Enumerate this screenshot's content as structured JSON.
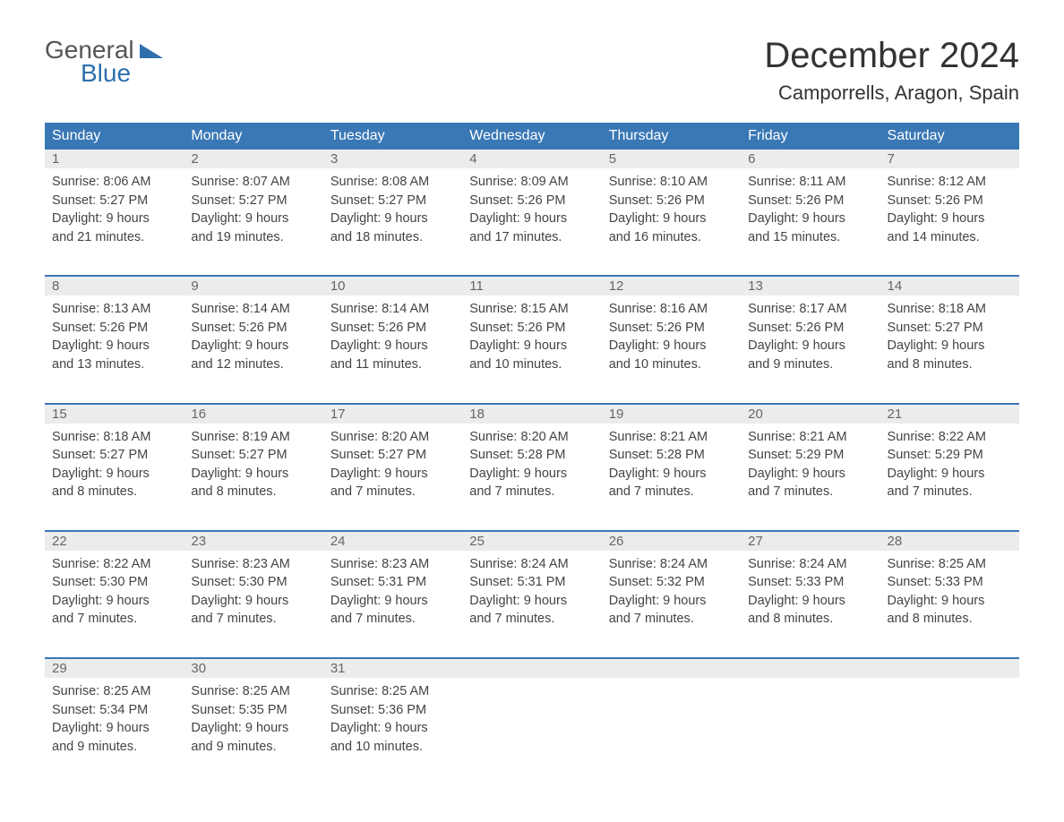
{
  "logo": {
    "general": "General",
    "blue": "Blue"
  },
  "title": "December 2024",
  "location": "Camporrells, Aragon, Spain",
  "colors": {
    "header_bg": "#3a78b5",
    "header_fg": "#ffffff",
    "daynum_bg": "#ececec",
    "daynum_fg": "#666666",
    "border": "#3a78b5",
    "logo_general": "#555555",
    "logo_blue": "#2f6fae",
    "text": "#444444",
    "background": "#ffffff"
  },
  "weekdays": [
    "Sunday",
    "Monday",
    "Tuesday",
    "Wednesday",
    "Thursday",
    "Friday",
    "Saturday"
  ],
  "weeks": [
    [
      {
        "n": "1",
        "sr": "Sunrise: 8:06 AM",
        "ss": "Sunset: 5:27 PM",
        "d1": "Daylight: 9 hours",
        "d2": "and 21 minutes."
      },
      {
        "n": "2",
        "sr": "Sunrise: 8:07 AM",
        "ss": "Sunset: 5:27 PM",
        "d1": "Daylight: 9 hours",
        "d2": "and 19 minutes."
      },
      {
        "n": "3",
        "sr": "Sunrise: 8:08 AM",
        "ss": "Sunset: 5:27 PM",
        "d1": "Daylight: 9 hours",
        "d2": "and 18 minutes."
      },
      {
        "n": "4",
        "sr": "Sunrise: 8:09 AM",
        "ss": "Sunset: 5:26 PM",
        "d1": "Daylight: 9 hours",
        "d2": "and 17 minutes."
      },
      {
        "n": "5",
        "sr": "Sunrise: 8:10 AM",
        "ss": "Sunset: 5:26 PM",
        "d1": "Daylight: 9 hours",
        "d2": "and 16 minutes."
      },
      {
        "n": "6",
        "sr": "Sunrise: 8:11 AM",
        "ss": "Sunset: 5:26 PM",
        "d1": "Daylight: 9 hours",
        "d2": "and 15 minutes."
      },
      {
        "n": "7",
        "sr": "Sunrise: 8:12 AM",
        "ss": "Sunset: 5:26 PM",
        "d1": "Daylight: 9 hours",
        "d2": "and 14 minutes."
      }
    ],
    [
      {
        "n": "8",
        "sr": "Sunrise: 8:13 AM",
        "ss": "Sunset: 5:26 PM",
        "d1": "Daylight: 9 hours",
        "d2": "and 13 minutes."
      },
      {
        "n": "9",
        "sr": "Sunrise: 8:14 AM",
        "ss": "Sunset: 5:26 PM",
        "d1": "Daylight: 9 hours",
        "d2": "and 12 minutes."
      },
      {
        "n": "10",
        "sr": "Sunrise: 8:14 AM",
        "ss": "Sunset: 5:26 PM",
        "d1": "Daylight: 9 hours",
        "d2": "and 11 minutes."
      },
      {
        "n": "11",
        "sr": "Sunrise: 8:15 AM",
        "ss": "Sunset: 5:26 PM",
        "d1": "Daylight: 9 hours",
        "d2": "and 10 minutes."
      },
      {
        "n": "12",
        "sr": "Sunrise: 8:16 AM",
        "ss": "Sunset: 5:26 PM",
        "d1": "Daylight: 9 hours",
        "d2": "and 10 minutes."
      },
      {
        "n": "13",
        "sr": "Sunrise: 8:17 AM",
        "ss": "Sunset: 5:26 PM",
        "d1": "Daylight: 9 hours",
        "d2": "and 9 minutes."
      },
      {
        "n": "14",
        "sr": "Sunrise: 8:18 AM",
        "ss": "Sunset: 5:27 PM",
        "d1": "Daylight: 9 hours",
        "d2": "and 8 minutes."
      }
    ],
    [
      {
        "n": "15",
        "sr": "Sunrise: 8:18 AM",
        "ss": "Sunset: 5:27 PM",
        "d1": "Daylight: 9 hours",
        "d2": "and 8 minutes."
      },
      {
        "n": "16",
        "sr": "Sunrise: 8:19 AM",
        "ss": "Sunset: 5:27 PM",
        "d1": "Daylight: 9 hours",
        "d2": "and 8 minutes."
      },
      {
        "n": "17",
        "sr": "Sunrise: 8:20 AM",
        "ss": "Sunset: 5:27 PM",
        "d1": "Daylight: 9 hours",
        "d2": "and 7 minutes."
      },
      {
        "n": "18",
        "sr": "Sunrise: 8:20 AM",
        "ss": "Sunset: 5:28 PM",
        "d1": "Daylight: 9 hours",
        "d2": "and 7 minutes."
      },
      {
        "n": "19",
        "sr": "Sunrise: 8:21 AM",
        "ss": "Sunset: 5:28 PM",
        "d1": "Daylight: 9 hours",
        "d2": "and 7 minutes."
      },
      {
        "n": "20",
        "sr": "Sunrise: 8:21 AM",
        "ss": "Sunset: 5:29 PM",
        "d1": "Daylight: 9 hours",
        "d2": "and 7 minutes."
      },
      {
        "n": "21",
        "sr": "Sunrise: 8:22 AM",
        "ss": "Sunset: 5:29 PM",
        "d1": "Daylight: 9 hours",
        "d2": "and 7 minutes."
      }
    ],
    [
      {
        "n": "22",
        "sr": "Sunrise: 8:22 AM",
        "ss": "Sunset: 5:30 PM",
        "d1": "Daylight: 9 hours",
        "d2": "and 7 minutes."
      },
      {
        "n": "23",
        "sr": "Sunrise: 8:23 AM",
        "ss": "Sunset: 5:30 PM",
        "d1": "Daylight: 9 hours",
        "d2": "and 7 minutes."
      },
      {
        "n": "24",
        "sr": "Sunrise: 8:23 AM",
        "ss": "Sunset: 5:31 PM",
        "d1": "Daylight: 9 hours",
        "d2": "and 7 minutes."
      },
      {
        "n": "25",
        "sr": "Sunrise: 8:24 AM",
        "ss": "Sunset: 5:31 PM",
        "d1": "Daylight: 9 hours",
        "d2": "and 7 minutes."
      },
      {
        "n": "26",
        "sr": "Sunrise: 8:24 AM",
        "ss": "Sunset: 5:32 PM",
        "d1": "Daylight: 9 hours",
        "d2": "and 7 minutes."
      },
      {
        "n": "27",
        "sr": "Sunrise: 8:24 AM",
        "ss": "Sunset: 5:33 PM",
        "d1": "Daylight: 9 hours",
        "d2": "and 8 minutes."
      },
      {
        "n": "28",
        "sr": "Sunrise: 8:25 AM",
        "ss": "Sunset: 5:33 PM",
        "d1": "Daylight: 9 hours",
        "d2": "and 8 minutes."
      }
    ],
    [
      {
        "n": "29",
        "sr": "Sunrise: 8:25 AM",
        "ss": "Sunset: 5:34 PM",
        "d1": "Daylight: 9 hours",
        "d2": "and 9 minutes."
      },
      {
        "n": "30",
        "sr": "Sunrise: 8:25 AM",
        "ss": "Sunset: 5:35 PM",
        "d1": "Daylight: 9 hours",
        "d2": "and 9 minutes."
      },
      {
        "n": "31",
        "sr": "Sunrise: 8:25 AM",
        "ss": "Sunset: 5:36 PM",
        "d1": "Daylight: 9 hours",
        "d2": "and 10 minutes."
      },
      null,
      null,
      null,
      null
    ]
  ]
}
